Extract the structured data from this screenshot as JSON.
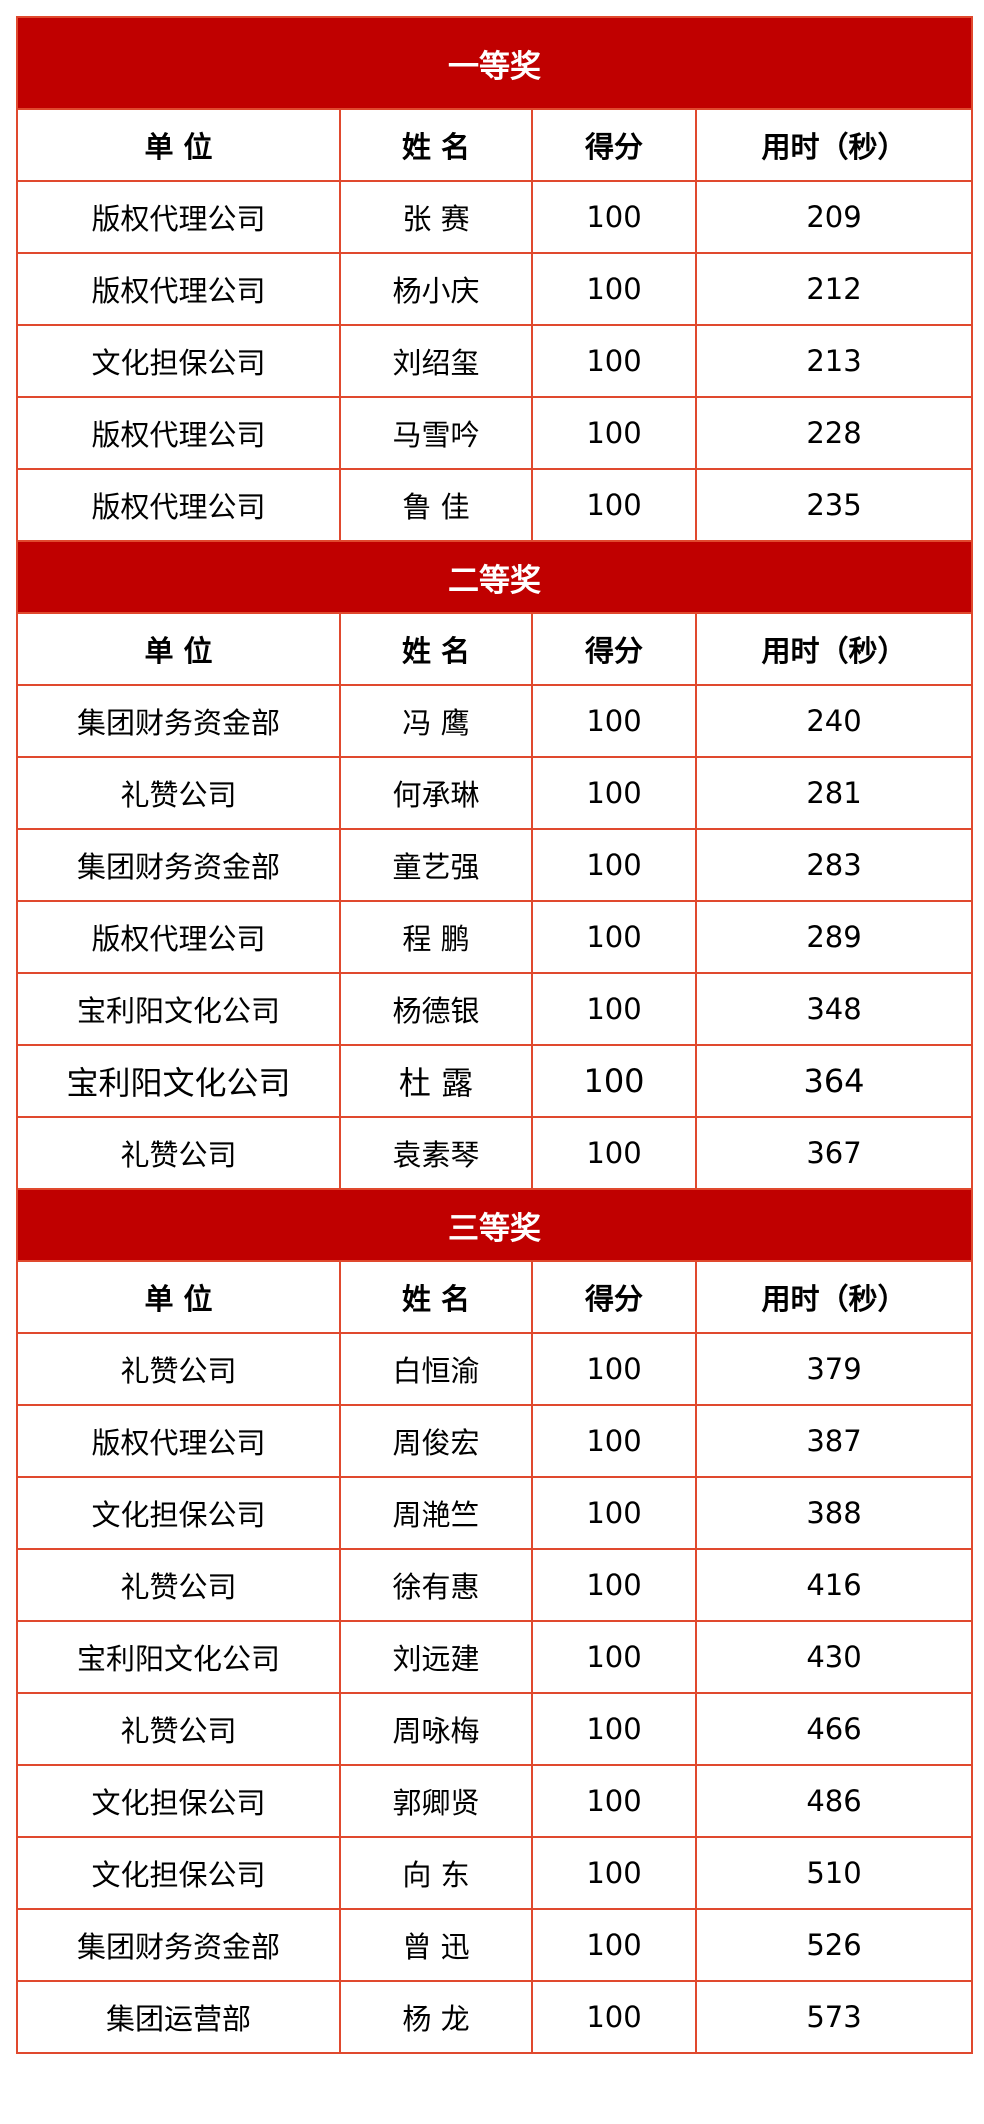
{
  "columns": [
    "单 位",
    "姓 名",
    "得分",
    "用时（秒）"
  ],
  "sections": [
    {
      "title": "一等奖",
      "rows": [
        [
          "版权代理公司",
          "张 赛",
          "100",
          "209"
        ],
        [
          "版权代理公司",
          "杨小庆",
          "100",
          "212"
        ],
        [
          "文化担保公司",
          "刘绍玺",
          "100",
          "213"
        ],
        [
          "版权代理公司",
          "马雪吟",
          "100",
          "228"
        ],
        [
          "版权代理公司",
          "鲁 佳",
          "100",
          "235"
        ]
      ]
    },
    {
      "title": "二等奖",
      "rows": [
        [
          "集团财务资金部",
          "冯 鹰",
          "100",
          "240"
        ],
        [
          "礼赞公司",
          "何承琳",
          "100",
          "281"
        ],
        [
          "集团财务资金部",
          "童艺强",
          "100",
          "283"
        ],
        [
          "版权代理公司",
          "程 鹏",
          "100",
          "289"
        ],
        [
          "宝利阳文化公司",
          "杨德银",
          "100",
          "348"
        ],
        [
          "宝利阳文化公司",
          "杜 露",
          "100",
          "364"
        ],
        [
          "礼赞公司",
          "袁素琴",
          "100",
          "367"
        ]
      ]
    },
    {
      "title": "三等奖",
      "rows": [
        [
          "礼赞公司",
          "白恒渝",
          "100",
          "379"
        ],
        [
          "版权代理公司",
          "周俊宏",
          "100",
          "387"
        ],
        [
          "文化担保公司",
          "周滟竺",
          "100",
          "388"
        ],
        [
          "礼赞公司",
          "徐有惠",
          "100",
          "416"
        ],
        [
          "宝利阳文化公司",
          "刘远建",
          "100",
          "430"
        ],
        [
          "礼赞公司",
          "周咏梅",
          "100",
          "466"
        ],
        [
          "文化担保公司",
          "郭卿贤",
          "100",
          "486"
        ],
        [
          "文化担保公司",
          "向 东",
          "100",
          "510"
        ],
        [
          "集团财务资金部",
          "曾 迅",
          "100",
          "526"
        ],
        [
          "集团运营部",
          "杨 龙",
          "100",
          "573"
        ]
      ]
    }
  ],
  "colors": {
    "title_bg": "#C00000",
    "border": "#E0492E",
    "title_text": "#FFFFFF"
  }
}
